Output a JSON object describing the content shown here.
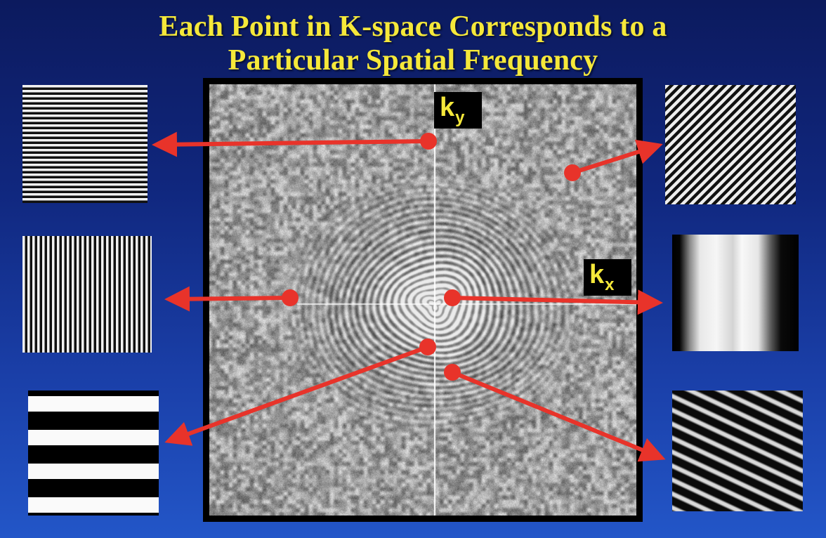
{
  "title": {
    "line1": "Each Point in K-space Corresponds to a",
    "line2": "Particular Spatial Frequency"
  },
  "axes": {
    "ky": {
      "main": "k",
      "sub": "y"
    },
    "kx": {
      "main": "k",
      "sub": "x"
    }
  },
  "colors": {
    "background_top": "#0c1a5e",
    "background_bottom": "#2356c8",
    "title": "#f5e83a",
    "arrow": "#e8332a",
    "axis_line": "#ffffff"
  }
}
